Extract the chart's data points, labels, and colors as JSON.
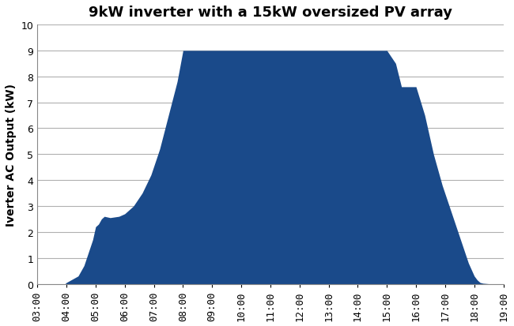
{
  "title": "9kW inverter with a 15kW oversized PV array",
  "ylabel": "Iverter AC Output (kW)",
  "fill_color": "#1a4a8a",
  "background_color": "#ffffff",
  "grid_color": "#b0b0b0",
  "ylim": [
    0,
    10
  ],
  "yticks": [
    0,
    1,
    2,
    3,
    4,
    5,
    6,
    7,
    8,
    9,
    10
  ],
  "x_labels": [
    "03:00",
    "04:00",
    "05:00",
    "06:00",
    "07:00",
    "08:00",
    "09:00",
    "10:00",
    "11:00",
    "12:00",
    "13:00",
    "14:00",
    "15:00",
    "16:00",
    "17:00",
    "18:00",
    "19:00"
  ],
  "time_points": [
    3.0,
    3.95,
    4.0,
    4.4,
    4.6,
    4.75,
    4.9,
    5.0,
    5.1,
    5.2,
    5.3,
    5.5,
    5.8,
    6.0,
    6.3,
    6.6,
    6.9,
    7.2,
    7.5,
    7.8,
    8.0,
    9.0,
    10.0,
    11.0,
    12.0,
    13.0,
    14.0,
    14.5,
    15.0,
    15.3,
    15.5,
    15.7,
    16.0,
    16.3,
    16.6,
    16.9,
    17.2,
    17.5,
    17.8,
    18.0,
    18.1,
    18.2,
    18.3,
    18.5,
    19.0
  ],
  "power_values": [
    0.0,
    0.0,
    0.05,
    0.3,
    0.7,
    1.2,
    1.7,
    2.2,
    2.3,
    2.5,
    2.6,
    2.55,
    2.6,
    2.7,
    3.0,
    3.5,
    4.2,
    5.2,
    6.5,
    7.8,
    9.0,
    9.0,
    9.0,
    9.0,
    9.0,
    9.0,
    9.0,
    9.0,
    9.0,
    8.5,
    7.6,
    7.6,
    7.6,
    6.5,
    5.0,
    3.8,
    2.8,
    1.8,
    0.8,
    0.3,
    0.15,
    0.05,
    0.02,
    0.0,
    0.0
  ],
  "title_fontsize": 13,
  "ylabel_fontsize": 10,
  "tick_fontsize": 9
}
